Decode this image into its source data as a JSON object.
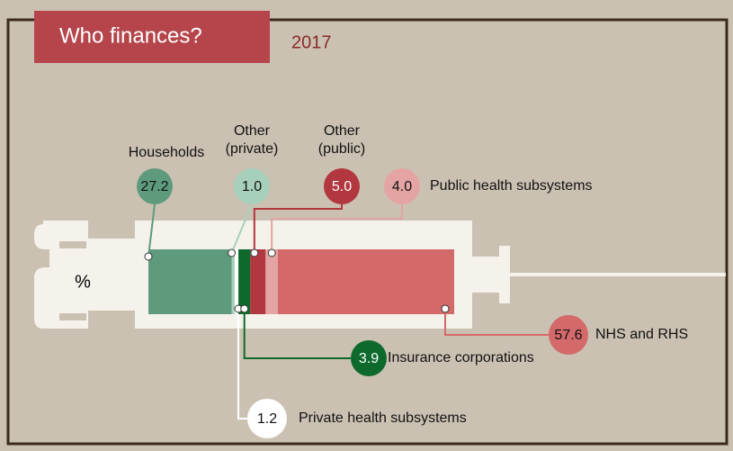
{
  "chart_data": {
    "type": "stacked-bar",
    "title": "Who finances?",
    "subtitle": "2017",
    "unit": "%",
    "series": [
      {
        "name": "Households",
        "color": "#5e9a7c",
        "values": [
          27.2
        ],
        "value_labels": [
          "27.2"
        ]
      },
      {
        "name": "Other\n(private)",
        "color": "#a6d0bc",
        "values": [
          1.0
        ],
        "value_labels": [
          "1.0"
        ]
      },
      {
        "name": "Private health subsystems",
        "color": "#ffffff",
        "values": [
          1.2
        ],
        "value_labels": [
          "1.2"
        ]
      },
      {
        "name": "Insurance corporations",
        "color": "#0e6a2c",
        "values": [
          3.9
        ],
        "value_labels": [
          "3.9"
        ]
      },
      {
        "name": "Other\n(public)",
        "color": "#b2373f",
        "values": [
          5.0
        ],
        "value_labels": [
          "5.0"
        ]
      },
      {
        "name": "Public health subsystems",
        "color": "#e4a4a4",
        "values": [
          4.0
        ],
        "value_labels": [
          "4.0"
        ]
      },
      {
        "name": "NHS and RHS",
        "color": "#d4696a",
        "values": [
          57.6
        ],
        "value_labels": [
          "57.6"
        ]
      }
    ]
  }
}
